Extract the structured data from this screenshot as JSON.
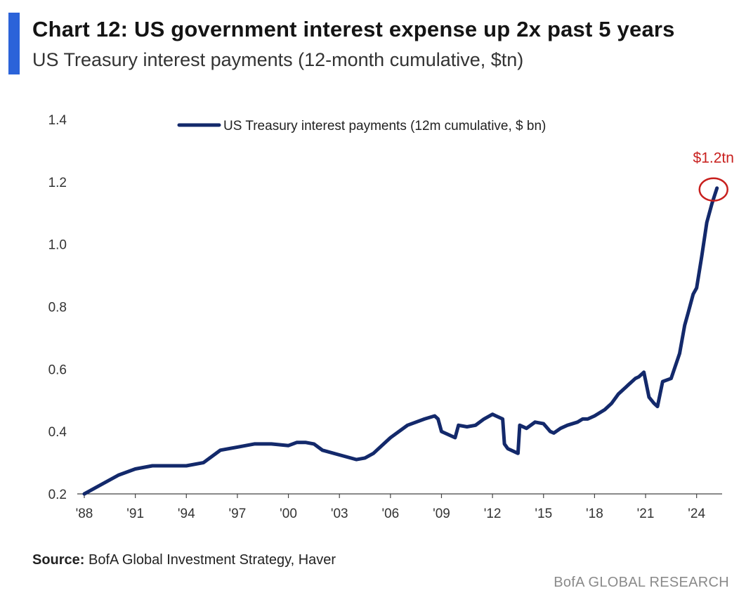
{
  "header": {
    "title": "Chart 12: US government interest expense up 2x past 5 years",
    "subtitle": "US Treasury interest payments (12-month cumulative, $tn)",
    "accent_color": "#2b63d9"
  },
  "footer": {
    "source_label": "Source:",
    "source_text": " BofA Global Investment Strategy, Haver",
    "brand": "BofA GLOBAL RESEARCH"
  },
  "chart_data": {
    "type": "line",
    "legend": "US Treasury interest payments (12m cumulative, $ bn)",
    "legend_position": "top-center",
    "series": [
      {
        "name": "US Treasury interest payments (12m cumulative, $ bn)",
        "color": "#13296b",
        "x": [
          1988.0,
          1989.0,
          1990.0,
          1991.0,
          1992.0,
          1993.0,
          1994.0,
          1995.0,
          1996.0,
          1997.0,
          1998.0,
          1999.0,
          2000.0,
          2000.5,
          2001.0,
          2001.5,
          2002.0,
          2003.0,
          2004.0,
          2004.5,
          2005.0,
          2006.0,
          2007.0,
          2008.0,
          2008.6,
          2008.8,
          2009.0,
          2009.2,
          2009.8,
          2010.0,
          2010.5,
          2011.0,
          2011.5,
          2012.0,
          2012.2,
          2012.6,
          2012.7,
          2012.9,
          2013.5,
          2013.6,
          2014.0,
          2014.5,
          2015.0,
          2015.4,
          2015.6,
          2016.0,
          2016.4,
          2017.0,
          2017.3,
          2017.6,
          2018.0,
          2018.6,
          2019.0,
          2019.4,
          2019.8,
          2020.0,
          2020.4,
          2020.6,
          2020.9,
          2021.2,
          2021.5,
          2021.7,
          2022.0,
          2022.5,
          2023.0,
          2023.3,
          2023.5,
          2023.8,
          2024.0,
          2024.3,
          2024.6,
          2024.9,
          2025.2
        ],
        "values": [
          0.2,
          0.23,
          0.26,
          0.28,
          0.29,
          0.29,
          0.29,
          0.3,
          0.34,
          0.35,
          0.36,
          0.36,
          0.355,
          0.365,
          0.365,
          0.36,
          0.34,
          0.325,
          0.31,
          0.315,
          0.33,
          0.38,
          0.42,
          0.44,
          0.45,
          0.44,
          0.4,
          0.395,
          0.38,
          0.42,
          0.415,
          0.42,
          0.44,
          0.455,
          0.45,
          0.44,
          0.36,
          0.345,
          0.33,
          0.42,
          0.41,
          0.43,
          0.425,
          0.4,
          0.395,
          0.41,
          0.42,
          0.43,
          0.44,
          0.44,
          0.45,
          0.47,
          0.49,
          0.52,
          0.54,
          0.55,
          0.57,
          0.575,
          0.59,
          0.51,
          0.49,
          0.48,
          0.56,
          0.57,
          0.65,
          0.74,
          0.78,
          0.84,
          0.86,
          0.96,
          1.07,
          1.13,
          1.18
        ]
      }
    ],
    "x_ticks": [
      "'88",
      "'91",
      "'94",
      "'97",
      "'00",
      "'03",
      "'06",
      "'09",
      "'12",
      "'15",
      "'18",
      "'21",
      "'24"
    ],
    "x_tick_values": [
      1988,
      1991,
      1994,
      1997,
      2000,
      2003,
      2006,
      2009,
      2012,
      2015,
      2018,
      2021,
      2024
    ],
    "y_ticks": [
      "0.2",
      "0.4",
      "0.6",
      "0.8",
      "1.0",
      "1.2",
      "1.4"
    ],
    "y_tick_values": [
      0.2,
      0.4,
      0.6,
      0.8,
      1.0,
      1.2,
      1.4
    ],
    "xlim": [
      1988,
      2025.5
    ],
    "ylim": [
      0.2,
      1.4
    ],
    "grid": false,
    "annotation": {
      "text": "$1.2tn",
      "x": 2025.2,
      "y": 1.18,
      "color": "#c8201e"
    }
  }
}
